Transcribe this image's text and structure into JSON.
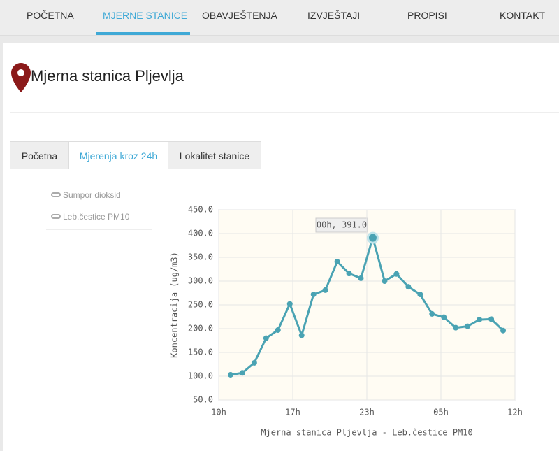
{
  "nav": [
    "POČETNA",
    "MJERNE STANICE",
    "OBAVJEŠTENJA",
    "IZVJEŠTAJI",
    "PROPISI",
    "KONTAKT"
  ],
  "page_title": "Mjerna stanica Pljevlja",
  "tabs": [
    "Početna",
    "Mjerenja kroz 24h",
    "Lokalitet stanice"
  ],
  "sidebar": [
    "Sumpor dioksid",
    "Leb.čestice PM10"
  ],
  "chart_data": {
    "type": "line",
    "xlabel": "Mjerna stanica Pljevlja - Leb.čestice PM10",
    "ylabel": "Koncentracija (ug/m3)",
    "annotation": "00h, 391.0",
    "color": "#4aa3b3",
    "x": [
      0,
      1,
      2,
      3,
      4,
      5,
      6,
      7,
      8,
      9,
      10,
      11,
      12,
      13,
      14,
      15,
      16,
      17,
      18,
      19,
      20,
      21,
      22,
      23
    ],
    "values": [
      103,
      107,
      128,
      180,
      197,
      252,
      186,
      272,
      281,
      341,
      316,
      306,
      391,
      300,
      315,
      288,
      272,
      231,
      224,
      202,
      205,
      219,
      220,
      196
    ],
    "xlim": [
      -1,
      24
    ],
    "xticks": [
      {
        "value": -1,
        "label": "10h"
      },
      {
        "value": 5.25,
        "label": "17h"
      },
      {
        "value": 11.5,
        "label": "23h"
      },
      {
        "value": 17.75,
        "label": "05h"
      },
      {
        "value": 24,
        "label": "12h"
      }
    ],
    "ylim": [
      50,
      450
    ],
    "yticks": [
      {
        "value": 50,
        "label": "50.0"
      },
      {
        "value": 100,
        "label": "100.0"
      },
      {
        "value": 150,
        "label": "150.0"
      },
      {
        "value": 200,
        "label": "200.0"
      },
      {
        "value": 250,
        "label": "250.0"
      },
      {
        "value": 300,
        "label": "300.0"
      },
      {
        "value": 350,
        "label": "350.0"
      },
      {
        "value": 400,
        "label": "400.0"
      },
      {
        "value": 450,
        "label": "450.0"
      }
    ],
    "grid": true
  }
}
